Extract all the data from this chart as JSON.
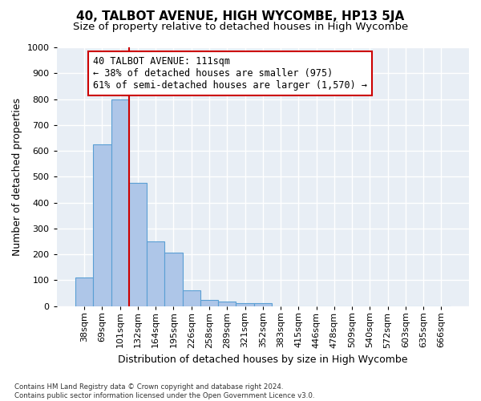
{
  "title": "40, TALBOT AVENUE, HIGH WYCOMBE, HP13 5JA",
  "subtitle": "Size of property relative to detached houses in High Wycombe",
  "xlabel": "Distribution of detached houses by size in High Wycombe",
  "ylabel": "Number of detached properties",
  "bar_values": [
    110,
    625,
    800,
    475,
    250,
    205,
    60,
    25,
    18,
    10,
    10,
    0,
    0,
    0,
    0,
    0,
    0,
    0,
    0,
    0,
    0
  ],
  "categories": [
    "38sqm",
    "69sqm",
    "101sqm",
    "132sqm",
    "164sqm",
    "195sqm",
    "226sqm",
    "258sqm",
    "289sqm",
    "321sqm",
    "352sqm",
    "383sqm",
    "415sqm",
    "446sqm",
    "478sqm",
    "509sqm",
    "540sqm",
    "572sqm",
    "603sqm",
    "635sqm",
    "666sqm"
  ],
  "bar_color": "#aec6e8",
  "bar_edge_color": "#5a9fd4",
  "vline_color": "#cc0000",
  "annotation_text": "40 TALBOT AVENUE: 111sqm\n← 38% of detached houses are smaller (975)\n61% of semi-detached houses are larger (1,570) →",
  "annotation_box_color": "#ffffff",
  "annotation_box_edge": "#cc0000",
  "ylim": [
    0,
    1000
  ],
  "yticks": [
    0,
    100,
    200,
    300,
    400,
    500,
    600,
    700,
    800,
    900,
    1000
  ],
  "footer1": "Contains HM Land Registry data © Crown copyright and database right 2024.",
  "footer2": "Contains public sector information licensed under the Open Government Licence v3.0.",
  "bg_color": "#e8eef5",
  "grid_color": "#ffffff",
  "title_fontsize": 11,
  "subtitle_fontsize": 9.5,
  "axis_label_fontsize": 9,
  "tick_fontsize": 8,
  "annotation_fontsize": 8.5
}
